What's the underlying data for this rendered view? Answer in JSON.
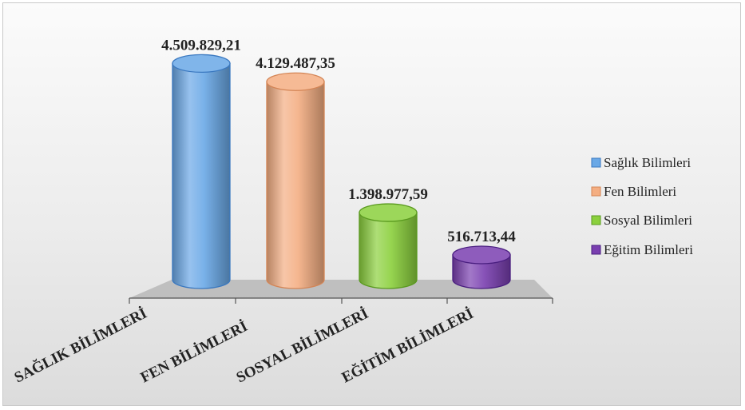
{
  "chart_data": {
    "type": "bar",
    "style": "3d-cylinder",
    "categories": [
      "SAĞLIK BİLİMLERİ",
      "FEN BİLİMLERİ",
      "SOSYAL BİLİMLERİ",
      "EĞİTİM BİLİMLERİ"
    ],
    "values": [
      4509829.21,
      4129487.35,
      1398977.59,
      516713.44
    ],
    "value_labels": [
      "4.509.829,21",
      "4.129.487,35",
      "1.398.977,59",
      "516.713,44"
    ],
    "legend": [
      "Sağlık Bilimleri",
      "Fen Bilimleri",
      "Sosyal Bilimleri",
      "Eğitim Bilimleri"
    ],
    "legend_position": "right",
    "colors": [
      "#6aa8e6",
      "#f4ae82",
      "#8bd03d",
      "#7a3fb0"
    ],
    "edge_colors": [
      "#3a78c0",
      "#d48556",
      "#5a9a1f",
      "#4a1f80"
    ],
    "title": "",
    "xlabel": "",
    "ylabel": "",
    "ylim": [
      0,
      4700000
    ],
    "grid": false
  }
}
